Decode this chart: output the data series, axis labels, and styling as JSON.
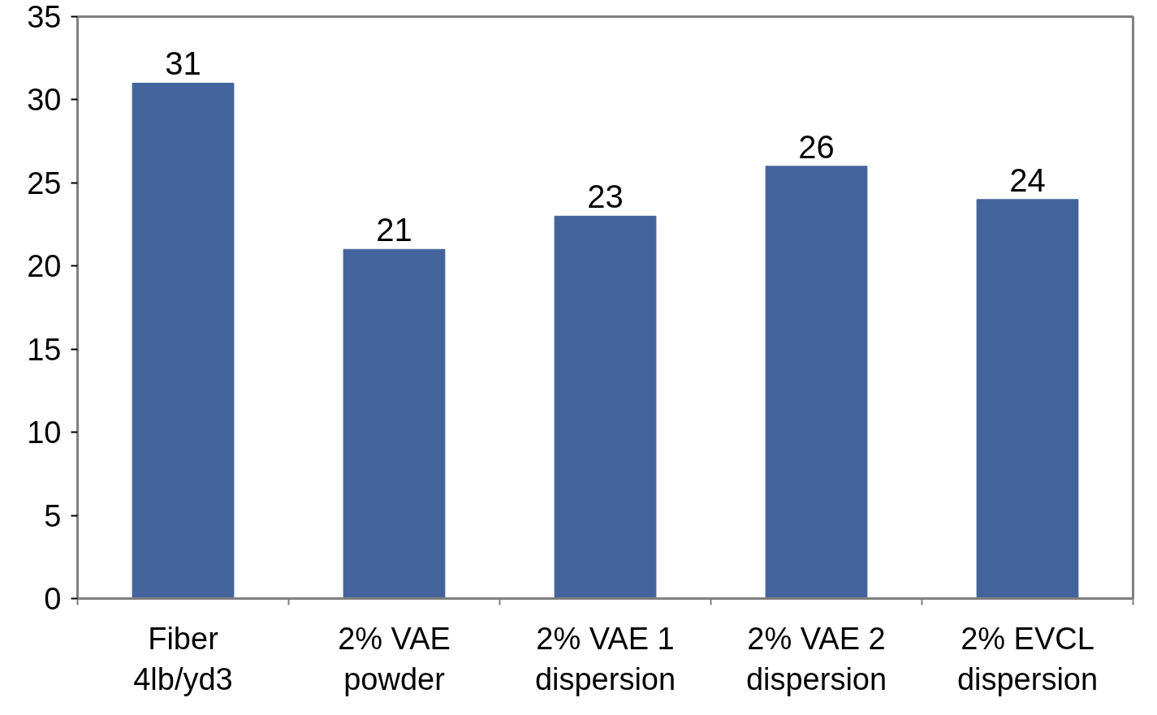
{
  "chart_data": {
    "type": "bar",
    "categories": [
      "Fiber\n4lb/yd3",
      "2% VAE\npowder",
      "2% VAE 1\ndispersion",
      "2% VAE 2\ndispersion",
      "2% EVCL\ndispersion"
    ],
    "values": [
      31,
      21,
      23,
      26,
      24
    ],
    "color": "#43649a",
    "ylim": [
      0,
      35
    ],
    "yticks": [
      0,
      5,
      10,
      15,
      20,
      25,
      30,
      35
    ],
    "data_labels": true,
    "grid": false
  }
}
